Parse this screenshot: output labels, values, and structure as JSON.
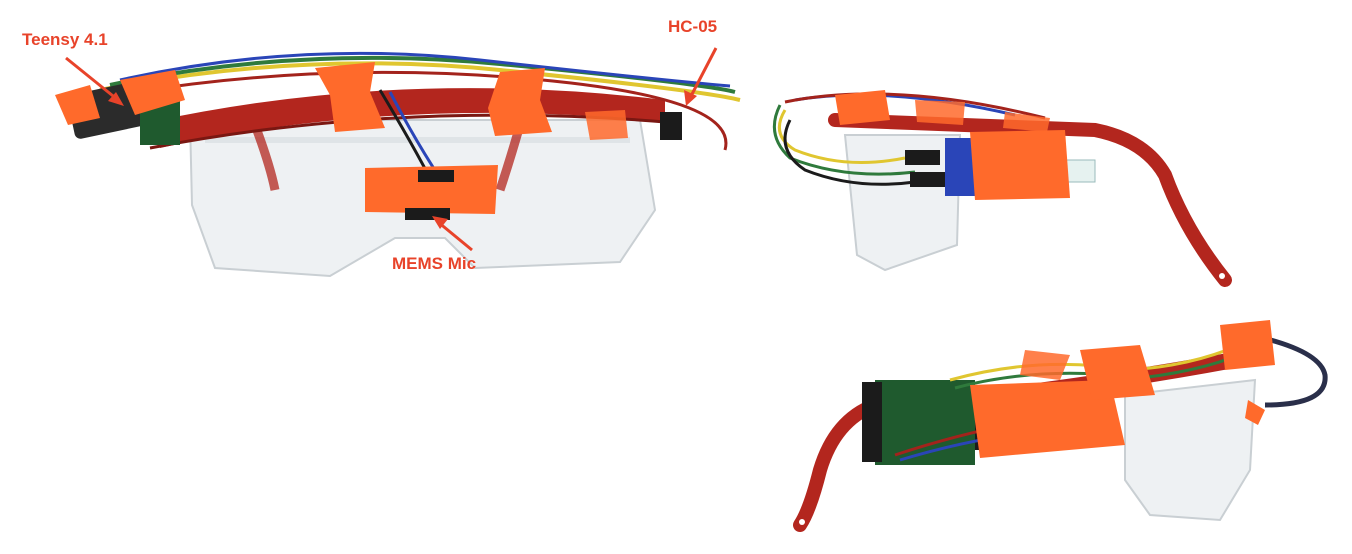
{
  "annotations": {
    "teensy": "Teensy 4.1",
    "hc05": "HC-05",
    "mems_mic": "MEMS Mic"
  },
  "colors": {
    "label": "#e8432a",
    "frame_red": "#b3261e",
    "frame_dark": "#7a1712",
    "tape_orange": "#ff6a2b",
    "lens": "#eef1f3",
    "pcb_green": "#1f5a2e",
    "wire_blue": "#2a45b8",
    "wire_yellow": "#e0c630",
    "wire_green": "#2f7a3c",
    "wire_red": "#a3231c",
    "wire_black": "#1b1b1b"
  },
  "icons": [
    "teensy-arrow-icon",
    "hc05-arrow-icon",
    "mic-arrow-icon"
  ]
}
